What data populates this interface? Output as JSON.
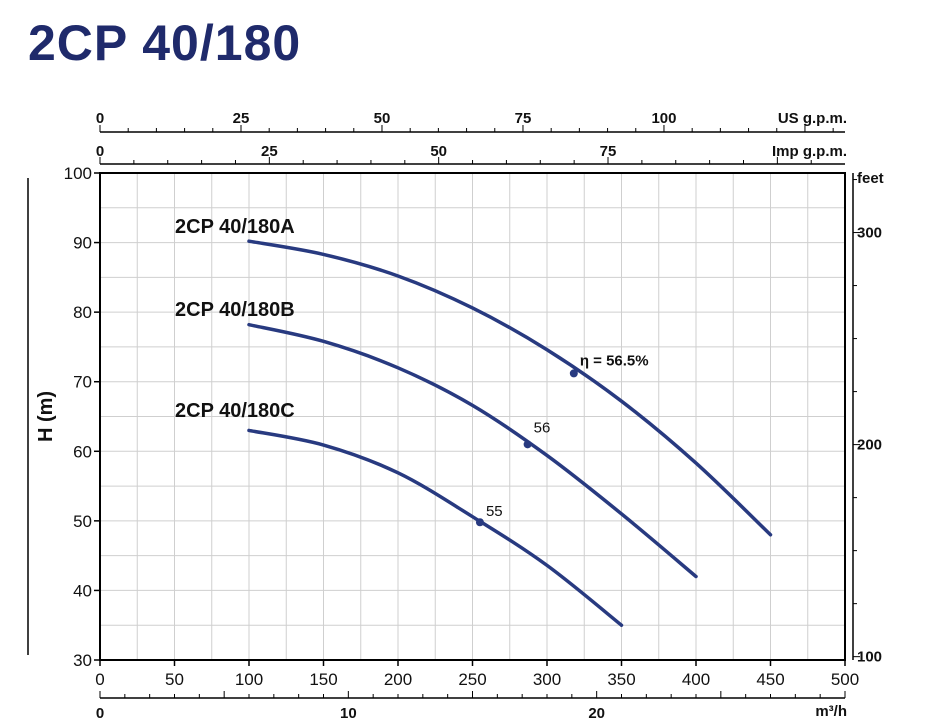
{
  "title": "2CP 40/180",
  "colors": {
    "title": "#1f2a6b",
    "curve": "#283a80",
    "grid": "#cfcfcf",
    "axis": "#000000"
  },
  "chart_data": {
    "type": "line",
    "title": "2CP 40/180",
    "xlabel": "",
    "ylabel": "H (m)",
    "x_unit_label": "m³/h",
    "xlim": [
      0,
      500
    ],
    "ylim": [
      30,
      100
    ],
    "x_ticks": [
      "0",
      "50",
      "100",
      "150",
      "200",
      "250",
      "300",
      "350",
      "400",
      "450",
      "500"
    ],
    "y_ticks": [
      "30",
      "40",
      "50",
      "60",
      "70",
      "80",
      "90",
      "100"
    ],
    "grid": true,
    "secondary_axes": {
      "us_gpm": {
        "label": "US g.p.m.",
        "ticks": [
          "0",
          "25",
          "50",
          "75",
          "100"
        ]
      },
      "imp_gpm": {
        "label": "Imp g.p.m.",
        "ticks": [
          "0",
          "25",
          "50",
          "75"
        ]
      },
      "m3h": {
        "label": "m³/h",
        "ticks": [
          "0",
          "10",
          "20"
        ]
      },
      "feet": {
        "label": "feet",
        "ticks": [
          "100",
          "200",
          "300"
        ]
      }
    },
    "series": [
      {
        "name": "2CP 40/180A",
        "x": [
          100,
          150,
          200,
          250,
          300,
          350,
          400,
          450
        ],
        "y": [
          90.2,
          88.3,
          85.2,
          80.6,
          74.6,
          67.2,
          58.3,
          48.0
        ]
      },
      {
        "name": "2CP 40/180B",
        "x": [
          100,
          150,
          200,
          250,
          300,
          350,
          400
        ],
        "y": [
          78.2,
          75.8,
          72.0,
          66.6,
          59.4,
          51.0,
          42.0
        ]
      },
      {
        "name": "2CP 40/180C",
        "x": [
          100,
          150,
          200,
          250,
          300,
          350
        ],
        "y": [
          63.0,
          60.9,
          56.9,
          50.6,
          43.6,
          35.0
        ]
      }
    ],
    "annotations": [
      {
        "series": "2CP 40/180A",
        "x": 318,
        "y": 71.2,
        "text": "η = 56.5%"
      },
      {
        "series": "2CP 40/180B",
        "x": 287,
        "y": 61.0,
        "text": "56"
      },
      {
        "series": "2CP 40/180C",
        "x": 255,
        "y": 49.8,
        "text": "55"
      }
    ]
  }
}
